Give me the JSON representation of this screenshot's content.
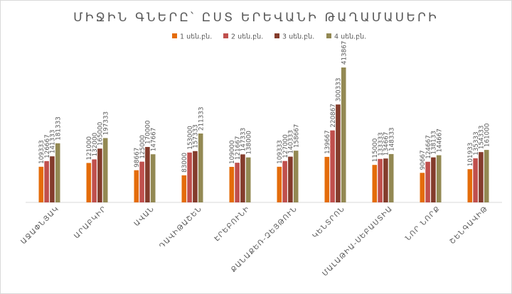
{
  "chart_data": {
    "type": "bar",
    "title": "ՄԻՋԻՆ ԳՆԵՐԸ՝ ԸՍՏ ԵՐԵՎԱՆԻ ԹԱՂԱՄԱՍԵՐԻ",
    "categories": [
      "ԱՋԱՓՆՅԱԿ",
      "ԱՐԱԲԿԻՐ",
      "ԱՎԱՆ",
      "ԴԱՎԻԹԱՇԵՆ",
      "ԷՐԵԲՈՒՆԻ",
      "ՔԱՆԱՔԵՌ-ԶԵՅԹՈՒՆ",
      "ԿԵՆՏՐՈՆ",
      "ՄԱԼԱԹԻԱ-ՍԵԲԱՍՏԻԱ",
      "ՆՈՐ ՆՈՐՔ",
      "ՇԵՆԳԱՎԻԹ"
    ],
    "series": [
      {
        "name": "1 սեն.բն.",
        "color": "#e46c0a",
        "values": [
          109333,
          121000,
          98667,
          83000,
          109000,
          109333,
          139667,
          115000,
          90667,
          101933
        ]
      },
      {
        "name": "2 սեն.բն.",
        "color": "#c0504d",
        "values": [
          126667,
          132000,
          125000,
          153000,
          121667,
          127000,
          220867,
          133333,
          124667,
          135333
        ]
      },
      {
        "name": "3 սեն.բն.",
        "color": "#843c2c",
        "values": [
          141333,
          165000,
          170000,
          157333,
          147333,
          140333,
          300333,
          134667,
          138133,
          154333
        ]
      },
      {
        "name": "4 սեն.բն.",
        "color": "#938953",
        "values": [
          181333,
          197333,
          147667,
          211333,
          138000,
          158667,
          413867,
          148333,
          144667,
          161000
        ]
      }
    ],
    "ylim": [
      0,
      420000
    ],
    "legend": "top-center",
    "grid": false
  }
}
